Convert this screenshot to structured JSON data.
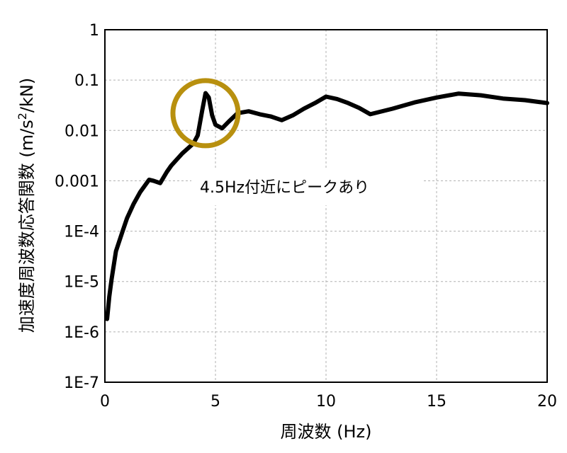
{
  "chart_data": {
    "type": "line",
    "xlabel": "周波数 (Hz)",
    "ylabel_main": "加速度周波数応答関数 (m/s",
    "ylabel_sup": "2",
    "ylabel_tail": "/kN)",
    "xlim": [
      0,
      20
    ],
    "ylim": [
      1e-07,
      1
    ],
    "yscale": "log",
    "grid": true,
    "xticks": [
      0,
      5,
      10,
      15,
      20
    ],
    "xtick_labels": [
      "0",
      "5",
      "10",
      "15",
      "20"
    ],
    "yticks": [
      1e-07,
      1e-06,
      1e-05,
      0.0001,
      0.001,
      0.01,
      0.1,
      1
    ],
    "ytick_labels": [
      "1E-7",
      "1E-6",
      "1E-5",
      "1E-4",
      "0.001",
      "0.01",
      "0.1",
      "1"
    ],
    "series": [
      {
        "color": "#000000",
        "x": [
          0.1,
          0.2,
          0.3,
          0.5,
          0.8,
          1.0,
          1.3,
          1.6,
          2.0,
          2.2,
          2.5,
          2.8,
          3.0,
          3.5,
          4.0,
          4.2,
          4.4,
          4.55,
          4.7,
          4.85,
          5.0,
          5.3,
          5.6,
          6.0,
          6.5,
          7.0,
          7.5,
          8.0,
          8.5,
          9.0,
          9.5,
          10.0,
          10.5,
          11.0,
          11.5,
          12.0,
          13.0,
          14.0,
          15.0,
          16.0,
          17.0,
          18.0,
          19.0,
          20.0
        ],
        "y": [
          1.8e-06,
          5e-06,
          1.1e-05,
          4e-05,
          0.0001,
          0.00018,
          0.00035,
          0.0006,
          0.00105,
          0.001,
          0.0009,
          0.0015,
          0.002,
          0.0035,
          0.0055,
          0.008,
          0.025,
          0.055,
          0.045,
          0.02,
          0.013,
          0.011,
          0.015,
          0.022,
          0.024,
          0.021,
          0.019,
          0.016,
          0.02,
          0.027,
          0.035,
          0.047,
          0.042,
          0.035,
          0.028,
          0.021,
          0.027,
          0.036,
          0.045,
          0.054,
          0.05,
          0.043,
          0.04,
          0.035
        ]
      }
    ],
    "annotation": {
      "text": "4.5Hz付近にピークあり",
      "x": 4.55,
      "y": 0.022,
      "circle_color": "#B8900F"
    }
  }
}
